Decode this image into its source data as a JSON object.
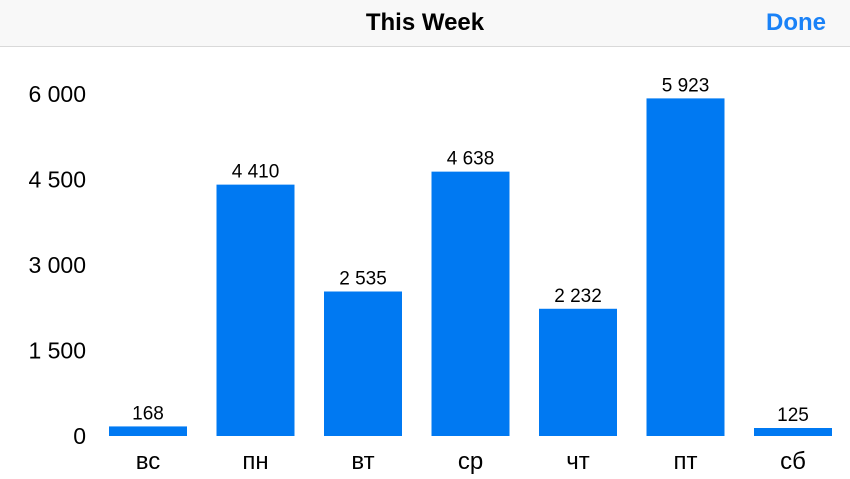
{
  "navbar": {
    "title": "This Week",
    "done_label": "Done"
  },
  "colors": {
    "bar": "#0079f2",
    "accent": "#1a82f7"
  },
  "chart_data": {
    "type": "bar",
    "categories": [
      "вс",
      "пн",
      "вт",
      "ср",
      "чт",
      "пт",
      "сб"
    ],
    "values": [
      168,
      4410,
      2535,
      4638,
      2232,
      5923,
      125
    ],
    "value_labels": [
      "168",
      "4 410",
      "2 535",
      "4 638",
      "2 232",
      "5 923",
      "125"
    ],
    "yticks": [
      0,
      1500,
      3000,
      4500,
      6000
    ],
    "ytick_labels": [
      "0",
      "1 500",
      "3 000",
      "4 500",
      "6 000"
    ],
    "ylim": [
      0,
      6000
    ],
    "grid": false,
    "title": "",
    "xlabel": "",
    "ylabel": ""
  }
}
